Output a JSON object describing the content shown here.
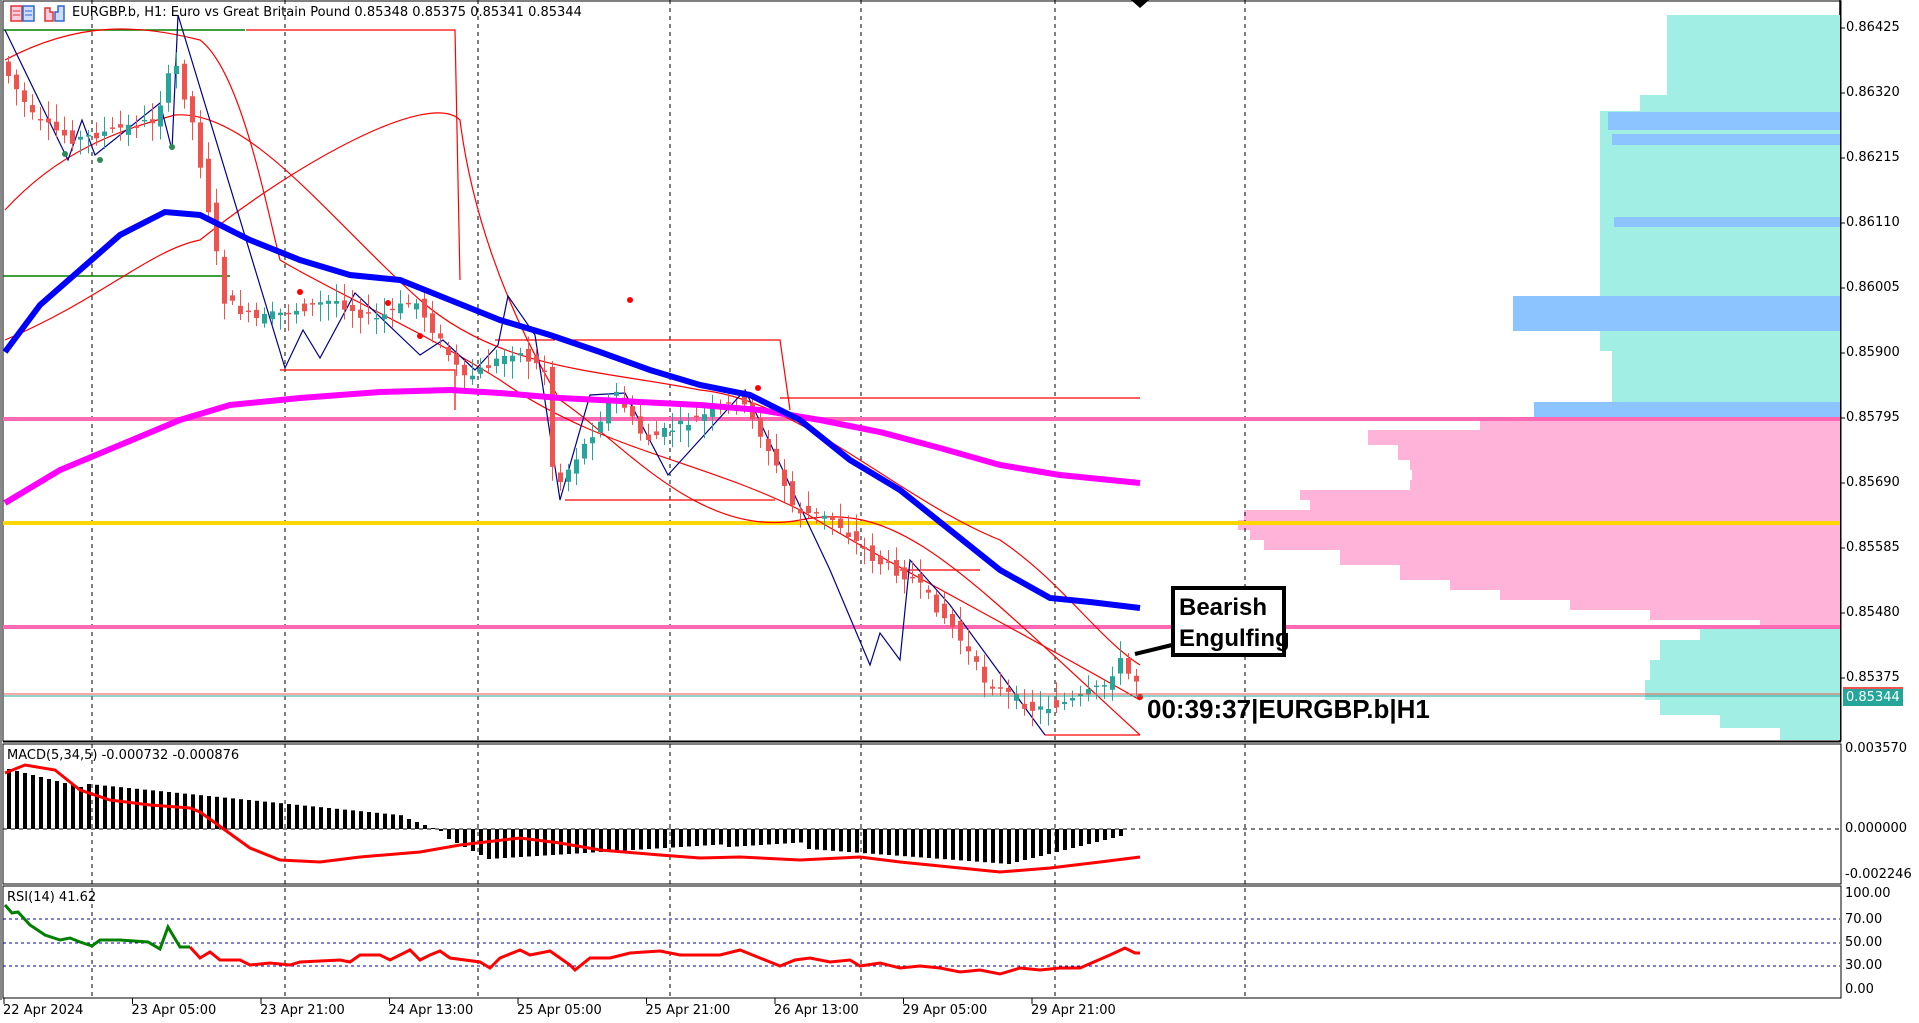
{
  "header": {
    "symbol": "EURGBP.b",
    "timeframe": "H1",
    "description": "Euro vs Great Britain Pound",
    "ohlc": "0.85348 0.85375 0.85341 0.85344",
    "full_title": "EURGBP.b, H1:  Euro vs Great Britain Pound   0.85348 0.85375 0.85341 0.85344"
  },
  "icons": {
    "one_click_trading": "one-click-trading-icon",
    "market_depth": "market-depth-icon",
    "chart_shift": "chart-shift-marker-icon"
  },
  "price_axis": {
    "labels": [
      "0.86425",
      "0.86320",
      "0.86215",
      "0.86110",
      "0.86005",
      "0.85900",
      "0.85795",
      "0.85690",
      "0.85585",
      "0.85480",
      "0.85375"
    ],
    "current_price": "0.85344"
  },
  "macd": {
    "label": "MACD(5,34,5) -0.000732 -0.000876",
    "axis": [
      "0.003570",
      "0.000000",
      "-0.002246"
    ]
  },
  "rsi": {
    "label": "RSI(14) 41.62",
    "axis": [
      "100.00",
      "70.00",
      "50.00",
      "30.00",
      "0.00"
    ]
  },
  "time_axis": {
    "labels": [
      "22 Apr 2024",
      "23 Apr 05:00",
      "23 Apr 21:00",
      "24 Apr 13:00",
      "25 Apr 05:00",
      "25 Apr 21:00",
      "26 Apr 13:00",
      "29 Apr 05:00",
      "29 Apr 21:00"
    ]
  },
  "annotation": {
    "line1": "Bearish",
    "line2": "Engulfing"
  },
  "countdown": {
    "text": "00:39:37|EURGBP.b|H1"
  },
  "colors": {
    "bull_candle": "#26a69a",
    "bear_candle": "#ef5350",
    "ma_fast": "#0000ff",
    "ma_slow": "#ff00ff",
    "level_pink": "#ff69b4",
    "level_yellow": "#ffd700",
    "vp_up": "#a0eee4",
    "vp_poc": "#8cc4ff",
    "vp_down": "#ffb3d9",
    "bollinger": "#ff0000",
    "zigzag": "#00008b",
    "rsi_up": "#008000",
    "rsi_down": "#ff0000"
  }
}
